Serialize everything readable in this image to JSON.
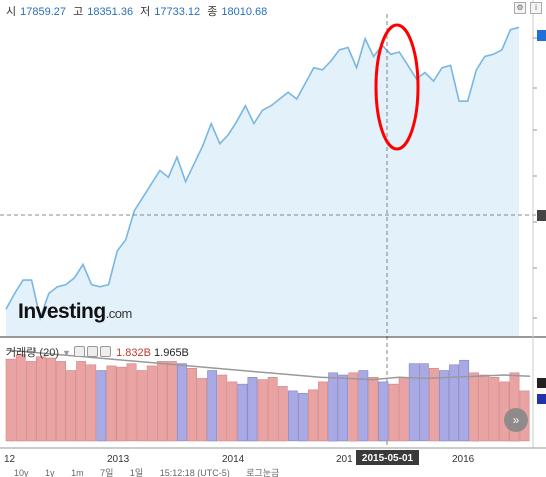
{
  "ohlc": {
    "open_label": "시",
    "open": "17859.27",
    "high_label": "고",
    "high": "18351.36",
    "low_label": "저",
    "low": "17733.12",
    "close_label": "종",
    "close": "18010.68"
  },
  "volume_legend": {
    "label": "거래량 (20)",
    "value1": "1.832B",
    "value2": "1.965B"
  },
  "logo": {
    "text": "Investing",
    "suffix": ".com"
  },
  "crosshair_date": "2015-05-01",
  "toolbar": {
    "items": [
      "10y",
      "1y",
      "1m",
      "7일",
      "1일",
      "15:12:18 (UTC-5)",
      "로그눈금"
    ]
  },
  "colors": {
    "line": "#7ab6e3",
    "area": "#e3f1fb",
    "vol_up": "#e9a3a3",
    "vol_down": "#a9a9e6",
    "marker": "#ff0000"
  },
  "chart_data": {
    "type": "line",
    "x_tick_labels": [
      "12",
      "2013",
      "2014",
      "201",
      "2016"
    ],
    "price_series": [
      12400,
      12750,
      13050,
      13050,
      12200,
      12750,
      12900,
      12950,
      13100,
      13400,
      12950,
      12900,
      12950,
      13700,
      13950,
      14600,
      14900,
      15200,
      15500,
      15350,
      15800,
      15250,
      15650,
      16050,
      16550,
      16100,
      16300,
      16600,
      16950,
      16550,
      16850,
      16950,
      17100,
      17250,
      17100,
      17450,
      17800,
      17750,
      17950,
      18200,
      18250,
      17800,
      18450,
      18050,
      18300,
      18100,
      18150,
      17850,
      17550,
      17690,
      17500,
      17800,
      17850,
      17050,
      17050,
      17750,
      18050,
      18100,
      18200,
      18650,
      18700
    ],
    "volume_series": [
      {
        "v": 0.72,
        "d": "up"
      },
      {
        "v": 0.76,
        "d": "up"
      },
      {
        "v": 0.7,
        "d": "up"
      },
      {
        "v": 0.74,
        "d": "up"
      },
      {
        "v": 0.73,
        "d": "up"
      },
      {
        "v": 0.7,
        "d": "up"
      },
      {
        "v": 0.62,
        "d": "up"
      },
      {
        "v": 0.7,
        "d": "up"
      },
      {
        "v": 0.67,
        "d": "up"
      },
      {
        "v": 0.62,
        "d": "down"
      },
      {
        "v": 0.66,
        "d": "up"
      },
      {
        "v": 0.65,
        "d": "up"
      },
      {
        "v": 0.68,
        "d": "up"
      },
      {
        "v": 0.62,
        "d": "up"
      },
      {
        "v": 0.66,
        "d": "up"
      },
      {
        "v": 0.7,
        "d": "up"
      },
      {
        "v": 0.7,
        "d": "up"
      },
      {
        "v": 0.68,
        "d": "down"
      },
      {
        "v": 0.64,
        "d": "up"
      },
      {
        "v": 0.55,
        "d": "up"
      },
      {
        "v": 0.62,
        "d": "down"
      },
      {
        "v": 0.58,
        "d": "up"
      },
      {
        "v": 0.52,
        "d": "up"
      },
      {
        "v": 0.5,
        "d": "down"
      },
      {
        "v": 0.56,
        "d": "down"
      },
      {
        "v": 0.54,
        "d": "up"
      },
      {
        "v": 0.56,
        "d": "up"
      },
      {
        "v": 0.48,
        "d": "up"
      },
      {
        "v": 0.44,
        "d": "down"
      },
      {
        "v": 0.42,
        "d": "down"
      },
      {
        "v": 0.45,
        "d": "up"
      },
      {
        "v": 0.52,
        "d": "up"
      },
      {
        "v": 0.6,
        "d": "down"
      },
      {
        "v": 0.58,
        "d": "down"
      },
      {
        "v": 0.6,
        "d": "up"
      },
      {
        "v": 0.62,
        "d": "down"
      },
      {
        "v": 0.56,
        "d": "up"
      },
      {
        "v": 0.52,
        "d": "down"
      },
      {
        "v": 0.5,
        "d": "up"
      },
      {
        "v": 0.56,
        "d": "up"
      },
      {
        "v": 0.68,
        "d": "down"
      },
      {
        "v": 0.68,
        "d": "down"
      },
      {
        "v": 0.64,
        "d": "up"
      },
      {
        "v": 0.62,
        "d": "down"
      },
      {
        "v": 0.67,
        "d": "down"
      },
      {
        "v": 0.71,
        "d": "down"
      },
      {
        "v": 0.6,
        "d": "up"
      },
      {
        "v": 0.58,
        "d": "up"
      },
      {
        "v": 0.56,
        "d": "up"
      },
      {
        "v": 0.52,
        "d": "up"
      },
      {
        "v": 0.6,
        "d": "up"
      },
      {
        "v": 0.44,
        "d": "up"
      }
    ],
    "volume_average": [
      0.8,
      0.78,
      0.76,
      0.74,
      0.72,
      0.7,
      0.68,
      0.66,
      0.64,
      0.62,
      0.6,
      0.58,
      0.56,
      0.55,
      0.54,
      0.56,
      0.55,
      0.56,
      0.57,
      0.58,
      0.57
    ],
    "grid": false,
    "legend": "none"
  }
}
